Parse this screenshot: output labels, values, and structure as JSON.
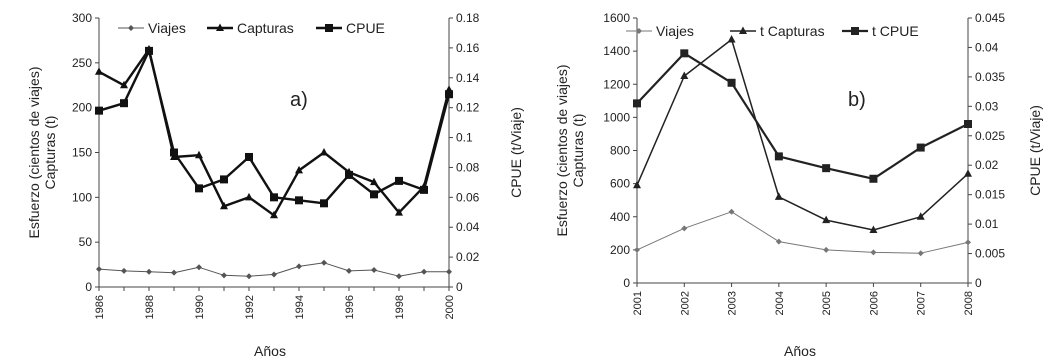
{
  "chart_data": [
    {
      "type": "line",
      "panel_label": "a)",
      "xlabel": "Años",
      "ylabel_left": [
        "Esfuerzo (cientos de viajes)",
        "Capturas (t)"
      ],
      "ylabel_right": "CPUE (t/Viaje)",
      "ylim_left": [
        0,
        300
      ],
      "ylim_right": [
        0,
        0.18
      ],
      "yticks_left": [
        "0",
        "50",
        "100",
        "150",
        "200",
        "250",
        "300"
      ],
      "yticks_right": [
        "0",
        "0.02",
        "0.04",
        "0.06",
        "0.08",
        "0.1",
        "0.12",
        "0.14",
        "0.16",
        "0.18"
      ],
      "x": [
        1986,
        1987,
        1988,
        1989,
        1990,
        1991,
        1992,
        1993,
        1994,
        1995,
        1996,
        1997,
        1998,
        1999,
        2000
      ],
      "xticks": [
        "1986",
        "1988",
        "1990",
        "1992",
        "1994",
        "1996",
        "1998",
        "2000"
      ],
      "legend_position": "top",
      "series": [
        {
          "name": "Viajes",
          "axis": "left",
          "marker": "diamond",
          "color": "#555555",
          "values": [
            20,
            18,
            17,
            16,
            22,
            13,
            12,
            14,
            23,
            27,
            18,
            19,
            12,
            17,
            17
          ]
        },
        {
          "name": "Capturas",
          "axis": "left",
          "marker": "triangle",
          "color": "#111111",
          "values": [
            240,
            225,
            265,
            145,
            147,
            90,
            100,
            80,
            130,
            150,
            128,
            117,
            83,
            112,
            220
          ]
        },
        {
          "name": "CPUE",
          "axis": "right",
          "marker": "square",
          "color": "#111111",
          "values": [
            0.118,
            0.123,
            0.158,
            0.09,
            0.066,
            0.072,
            0.087,
            0.06,
            0.058,
            0.056,
            0.075,
            0.062,
            0.071,
            0.065,
            0.129
          ]
        }
      ]
    },
    {
      "type": "line",
      "panel_label": "b)",
      "xlabel": "Años",
      "ylabel_left": [
        "Esfuerzo (cientos de viajes)",
        "Capturas (t)"
      ],
      "ylabel_right": "CPUE (t/Viaje)",
      "ylim_left": [
        0,
        1600
      ],
      "ylim_right": [
        0,
        0.045
      ],
      "yticks_left": [
        "0",
        "200",
        "400",
        "600",
        "800",
        "1000",
        "1200",
        "1400",
        "1600"
      ],
      "yticks_right": [
        "0",
        "0.005",
        "0.01",
        "0.015",
        "0.02",
        "0.025",
        "0.03",
        "0.035",
        "0.04",
        "0.045"
      ],
      "x": [
        2001,
        2002,
        2003,
        2004,
        2005,
        2006,
        2007,
        2008
      ],
      "xticks": [
        "2001",
        "2002",
        "2003",
        "2004",
        "2005",
        "2006",
        "2007",
        "2008"
      ],
      "legend_position": "top",
      "series": [
        {
          "name": "Viajes",
          "axis": "left",
          "marker": "diamond",
          "color": "#777777",
          "values": [
            200,
            330,
            430,
            250,
            200,
            185,
            180,
            245
          ]
        },
        {
          "name": "t Capturas",
          "axis": "left",
          "marker": "triangle",
          "color": "#222222",
          "values": [
            590,
            1250,
            1470,
            520,
            380,
            320,
            400,
            660
          ]
        },
        {
          "name": "t CPUE",
          "axis": "right",
          "marker": "square",
          "color": "#222222",
          "values": [
            0.0305,
            0.039,
            0.034,
            0.0215,
            0.0195,
            0.0177,
            0.023,
            0.027
          ]
        }
      ]
    }
  ]
}
